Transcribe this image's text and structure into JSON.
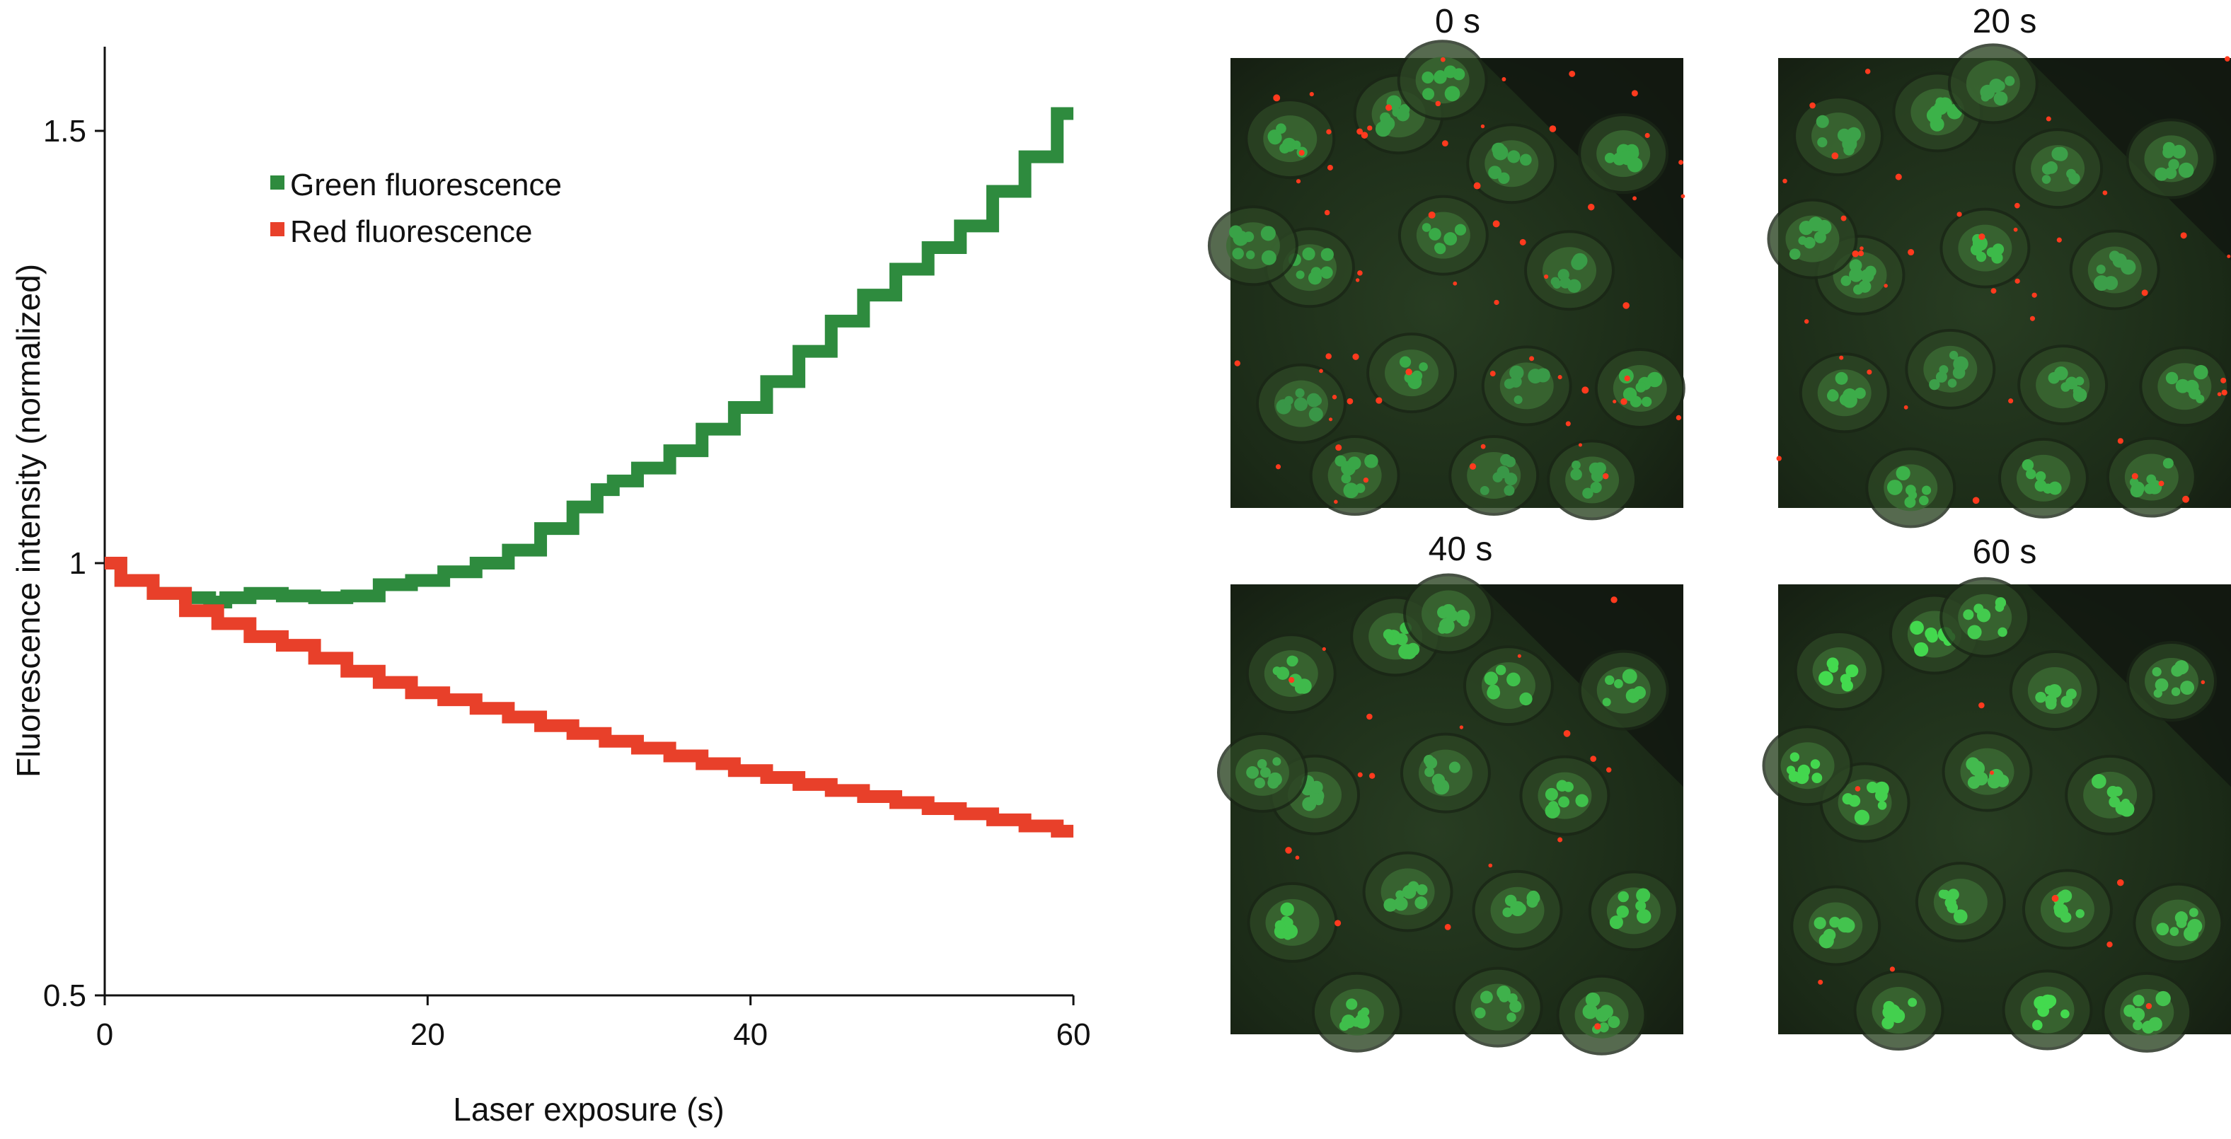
{
  "chart_data": [
    {
      "type": "line",
      "title": "",
      "xlabel": "Laser exposure (s)",
      "ylabel": "Fluorescence intensity (normalized)",
      "xlim": [
        0,
        60
      ],
      "ylim": [
        0.5,
        1.6
      ],
      "x_ticks": [
        0,
        20,
        40,
        60
      ],
      "y_ticks": [
        {
          "value": 0.5,
          "label": "0.5"
        },
        {
          "value": 1,
          "label": "1"
        },
        {
          "value": 1.5,
          "label": "1.5"
        }
      ],
      "grid": false,
      "legend_position": "top-left",
      "series": [
        {
          "name": "Green fluorescence",
          "color": "#2e8b3e",
          "x": [
            0,
            2,
            4,
            6,
            7,
            8,
            10,
            12,
            14,
            16,
            18,
            20,
            22,
            24,
            26,
            28,
            30,
            31,
            32,
            34,
            36,
            38,
            40,
            42,
            44,
            46,
            48,
            50,
            52,
            54,
            56,
            58,
            60
          ],
          "y": [
            1.0,
            0.98,
            0.965,
            0.96,
            0.955,
            0.96,
            0.965,
            0.962,
            0.96,
            0.962,
            0.975,
            0.98,
            0.99,
            1.0,
            1.015,
            1.04,
            1.065,
            1.085,
            1.095,
            1.11,
            1.13,
            1.155,
            1.18,
            1.21,
            1.245,
            1.28,
            1.31,
            1.34,
            1.365,
            1.39,
            1.43,
            1.47,
            1.52
          ]
        },
        {
          "name": "Red fluorescence",
          "color": "#e8402a",
          "x": [
            0,
            2,
            4,
            6,
            8,
            10,
            12,
            14,
            16,
            18,
            20,
            22,
            24,
            26,
            28,
            30,
            32,
            34,
            36,
            38,
            40,
            42,
            44,
            46,
            48,
            50,
            52,
            54,
            56,
            58,
            60
          ],
          "y": [
            1.0,
            0.98,
            0.965,
            0.945,
            0.93,
            0.915,
            0.905,
            0.89,
            0.875,
            0.862,
            0.85,
            0.842,
            0.832,
            0.822,
            0.812,
            0.803,
            0.794,
            0.786,
            0.777,
            0.768,
            0.76,
            0.752,
            0.744,
            0.737,
            0.73,
            0.723,
            0.716,
            0.71,
            0.703,
            0.696,
            0.69
          ]
        }
      ]
    }
  ],
  "image_panels": [
    {
      "label": "0 s",
      "red_dots": 60,
      "green_brightness": 0.55
    },
    {
      "label": "20 s",
      "red_dots": 40,
      "green_brightness": 0.65
    },
    {
      "label": "40 s",
      "red_dots": 18,
      "green_brightness": 0.75
    },
    {
      "label": "60 s",
      "red_dots": 10,
      "green_brightness": 0.9
    }
  ]
}
